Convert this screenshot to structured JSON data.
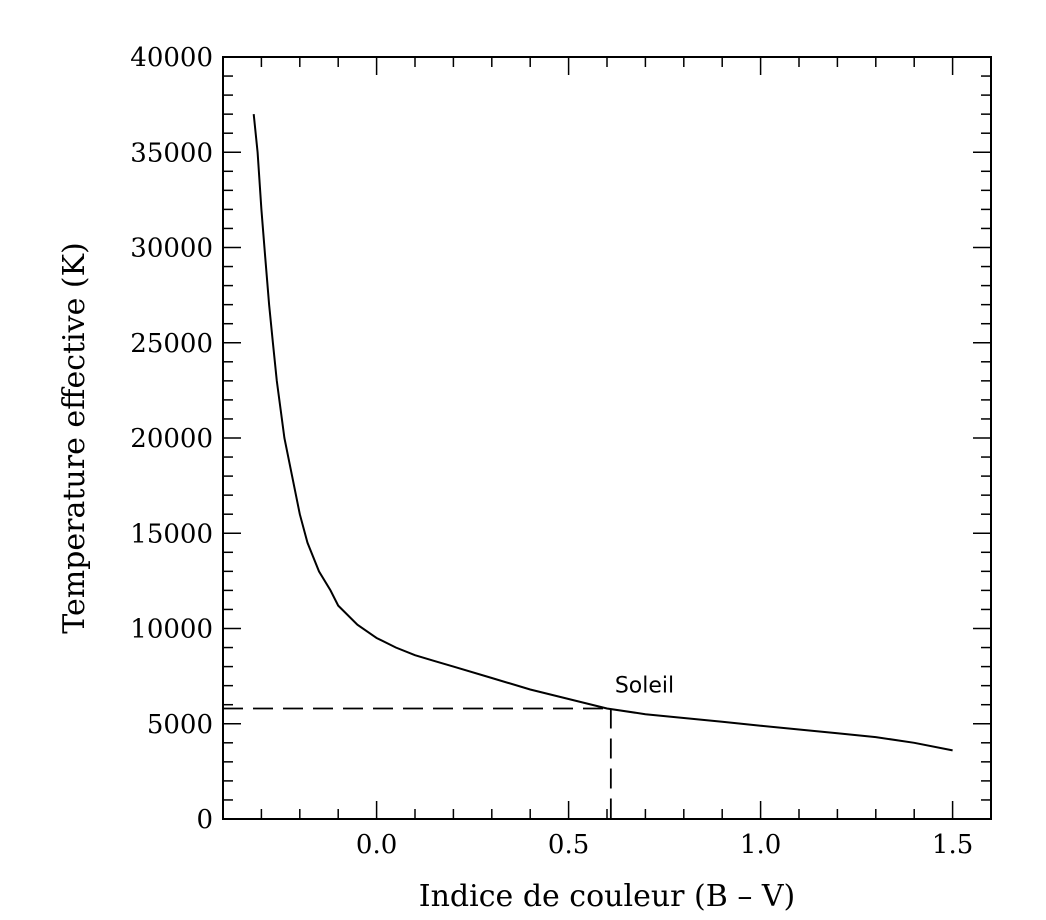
{
  "chart_data": {
    "type": "line",
    "title": "",
    "xlabel": "Indice de couleur (B – V)",
    "ylabel": "Temperature effective (K)",
    "xlim": [
      -0.4,
      1.6
    ],
    "ylim": [
      0,
      40000
    ],
    "x_ticks": [
      0.0,
      0.5,
      1.0,
      1.5
    ],
    "x_tick_labels": [
      "0.0",
      "0.5",
      "1.0",
      "1.5"
    ],
    "y_ticks": [
      0,
      5000,
      10000,
      15000,
      20000,
      25000,
      30000,
      35000,
      40000
    ],
    "y_tick_labels": [
      "0",
      "5000",
      "10000",
      "15000",
      "20000",
      "25000",
      "30000",
      "35000",
      "40000"
    ],
    "grid": false,
    "series": [
      {
        "x": [
          -0.32,
          -0.31,
          -0.3,
          -0.29,
          -0.28,
          -0.27,
          -0.26,
          -0.25,
          -0.24,
          -0.22,
          -0.2,
          -0.18,
          -0.15,
          -0.12,
          -0.1,
          -0.05,
          0.0,
          0.05,
          0.1,
          0.15,
          0.2,
          0.3,
          0.4,
          0.5,
          0.6,
          0.7,
          0.8,
          0.9,
          1.0,
          1.1,
          1.2,
          1.3,
          1.4,
          1.5
        ],
        "y": [
          37000,
          35000,
          32000,
          29500,
          27000,
          25000,
          23000,
          21500,
          20000,
          18000,
          16000,
          14500,
          13000,
          12000,
          11200,
          10200,
          9500,
          9000,
          8600,
          8300,
          8000,
          7400,
          6800,
          6300,
          5800,
          5500,
          5300,
          5100,
          4900,
          4700,
          4500,
          4300,
          4000,
          3600
        ]
      }
    ],
    "annotations": [
      {
        "text": "Soleil",
        "x": 0.61,
        "y": 5800
      }
    ],
    "reference_point": {
      "x": 0.61,
      "y": 5800
    },
    "line_color": "#000000"
  }
}
